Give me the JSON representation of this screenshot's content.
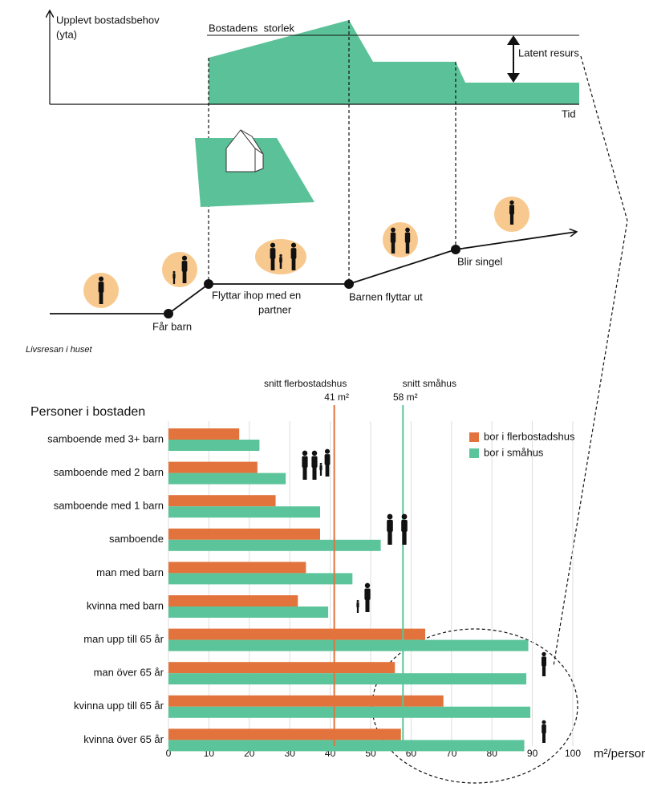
{
  "life_diagram": {
    "y_axis_label": [
      "Upplevt bostadsbehov",
      "(yta)"
    ],
    "size_label": "Bostadens  storlek",
    "latent_label": "Latent resurs",
    "x_axis_label": "Tid",
    "events": {
      "child": "Får barn",
      "partner": [
        "Flyttar ihop med en",
        "partner"
      ],
      "children_leave": "Barnen flyttar ut",
      "single": "Blir singel"
    },
    "caption": "Livsresan i huset"
  },
  "chart_data": {
    "type": "bar",
    "orientation": "horizontal",
    "y_axis_title": "Personer i bostaden",
    "x_axis_label": "m²/person",
    "categories": [
      "samboende med 3+ barn",
      "samboende med 2 barn",
      "samboende med 1 barn",
      "samboende",
      "man med barn",
      "kvinna med barn",
      "man upp till 65 år",
      "man över 65 år",
      "kvinna upp till 65 år",
      "kvinna över 65 år"
    ],
    "series": [
      {
        "name": "bor i flerbostadshus",
        "color": "#e2733d",
        "values": [
          17.5,
          22,
          26.5,
          37.5,
          34,
          32,
          63.5,
          56,
          68,
          57.5
        ]
      },
      {
        "name": "bor i småhus",
        "color": "#5cc49b",
        "values": [
          22.5,
          29,
          37.5,
          52.5,
          45.5,
          39.5,
          89,
          88.5,
          89.5,
          88
        ]
      }
    ],
    "reference_lines": [
      {
        "name": "snitt flerbostadshus",
        "value": 41,
        "label": "41 m²",
        "color": "#e2733d"
      },
      {
        "name": "snitt småhus",
        "value": 58,
        "label": "58 m²",
        "color": "#5cc49b"
      }
    ],
    "xlim": [
      0,
      100
    ],
    "xticks": [
      0,
      10,
      20,
      30,
      40,
      50,
      60,
      70,
      80,
      90,
      100
    ],
    "grid": true,
    "legend": "top-right"
  }
}
